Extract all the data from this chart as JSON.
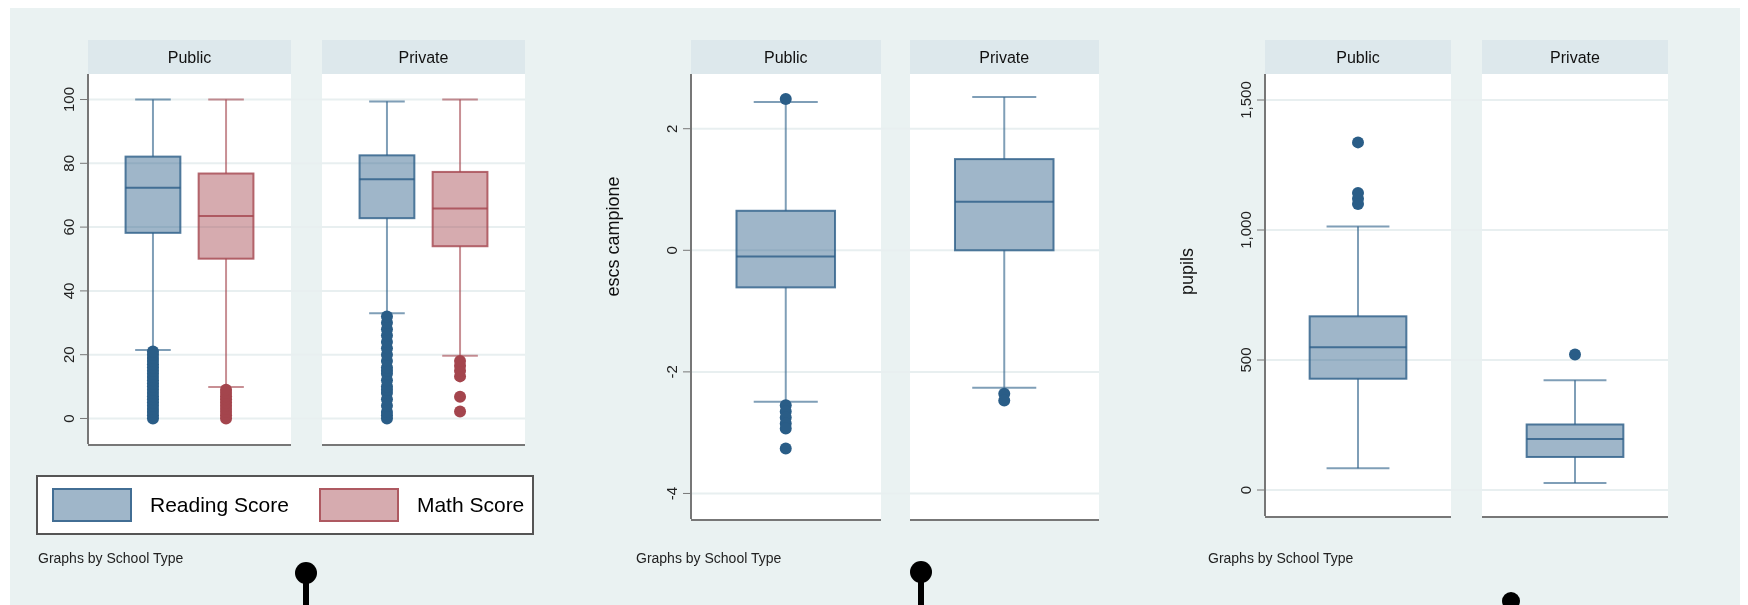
{
  "chart_data": [
    {
      "type": "box",
      "categories": [
        "Public",
        "Private"
      ],
      "series": [
        {
          "name": "Reading Score",
          "color": "#2a5d87",
          "boxes": [
            {
              "low": 21.5,
              "q1": 58.2,
              "median": 72.3,
              "q3": 82.1,
              "high": 100,
              "outliers": [
                0,
                1,
                2,
                3,
                4,
                5,
                6,
                7,
                8,
                9,
                10,
                11,
                12,
                13,
                14,
                15,
                16,
                17,
                18,
                19,
                20,
                21
              ]
            },
            {
              "low": 33,
              "q1": 62.8,
              "median": 75,
              "q3": 82.5,
              "high": 99.4,
              "outliers": [
                0,
                1,
                2,
                4,
                6,
                8,
                9,
                10,
                12,
                14,
                15,
                16,
                18,
                20,
                22,
                24,
                26,
                28,
                30,
                32
              ]
            }
          ]
        },
        {
          "name": "Math Score",
          "color": "#a4454d",
          "boxes": [
            {
              "low": 9.9,
              "q1": 50.1,
              "median": 63.5,
              "q3": 76.8,
              "high": 100,
              "outliers": [
                0,
                1,
                2,
                3,
                4,
                5,
                6,
                7,
                8,
                9
              ]
            },
            {
              "low": 19.7,
              "q1": 54,
              "median": 65.8,
              "q3": 77.3,
              "high": 100,
              "outliers": [
                2.2,
                6.8,
                13.2,
                15,
                16.5,
                18
              ]
            }
          ]
        }
      ],
      "ylim": [
        -8,
        108
      ],
      "yticks": [
        0,
        20,
        40,
        60,
        80,
        100
      ],
      "grid": "y",
      "legend": "bottom",
      "annotations": [
        "Graphs by School Type"
      ]
    },
    {
      "type": "box",
      "ylabel": "escs campione",
      "categories": [
        "Public",
        "Private"
      ],
      "series": [
        {
          "color": "#2a5d87",
          "boxes": [
            {
              "low": -2.49,
              "q1": -0.61,
              "median": -0.1,
              "q3": 0.65,
              "high": 2.44,
              "outliers": [
                2.49,
                -2.55,
                -2.65,
                -2.75,
                -2.85,
                -2.93,
                -3.26
              ]
            },
            {
              "low": -2.26,
              "q1": 0,
              "median": 0.8,
              "q3": 1.5,
              "high": 2.52,
              "outliers": [
                -2.36,
                -2.47
              ]
            }
          ]
        }
      ],
      "ylim": [
        -4.42,
        2.9
      ],
      "yticks": [
        -4,
        -2,
        0,
        2
      ],
      "grid": "y",
      "annotations": [
        "Graphs by School Type"
      ]
    },
    {
      "type": "box",
      "ylabel": "pupils",
      "categories": [
        "Public",
        "Private"
      ],
      "series": [
        {
          "color": "#2a5d87",
          "boxes": [
            {
              "low": 84,
              "q1": 428,
              "median": 549,
              "q3": 668,
              "high": 1013,
              "outliers": [
                1100,
                1120,
                1142,
                1337
              ]
            },
            {
              "low": 27,
              "q1": 127,
              "median": 196,
              "q3": 252,
              "high": 422,
              "outliers": [
                521
              ]
            }
          ]
        }
      ],
      "ylim": [
        -100,
        1600
      ],
      "yticks": [
        0,
        500,
        {
          "value": 1000,
          "label": "1,000"
        },
        {
          "value": 1500,
          "label": "1,500"
        }
      ],
      "grid": "y",
      "annotations": [
        "Graphs by School Type"
      ]
    }
  ]
}
